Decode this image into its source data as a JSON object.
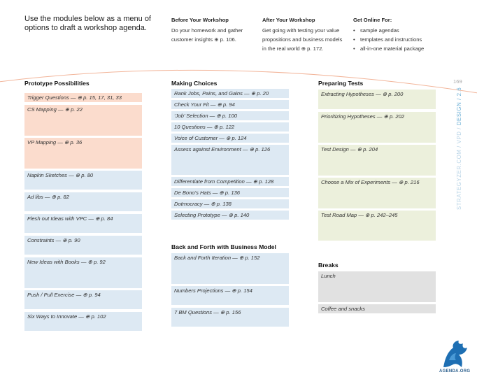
{
  "intro": "Use the modules below as a menu of options to draft a workshop agenda.",
  "before": {
    "title": "Before Your Workshop",
    "text": "Do your homework and gather customer insights ⊕ p. 106."
  },
  "after": {
    "title": "After Your Workshop",
    "text": "Get going with testing your value propositions and business models in the real world ⊕ p. 172."
  },
  "online": {
    "title": "Get Online For:",
    "items": [
      "sample agendas",
      "templates and instructions",
      "all-in-one material package"
    ]
  },
  "page_number": "169",
  "side_label_main": "STRATEGYZER.COM / VPD / ",
  "side_label_accent": "DESIGN / 2.6",
  "logo_text": "AGENDA.ORG",
  "prototype": {
    "title": "Prototype Possibilities",
    "items": [
      "Trigger Questions — ⊕ p. 15, 17, 31, 33",
      "CS Mapping — ⊕ p. 22",
      "VP Mapping — ⊕ p. 36",
      "Napkin Sketches — ⊕ p. 80",
      "Ad libs — ⊕ p. 82",
      "Flesh out Ideas with VPC — ⊕ p. 84",
      "Constraints — ⊕ p. 90",
      "New Ideas with Books — ⊕ p. 92",
      "Push / Pull Exercise — ⊕ p. 94",
      "Six Ways to Innovate — ⊕ p. 102"
    ]
  },
  "choices": {
    "title": "Making Choices",
    "items": [
      "Rank Jobs, Pains, and Gains — ⊕ p. 20",
      "Check Your Fit — ⊕ p. 94",
      "‘Job’ Selection — ⊕ p. 100",
      "10 Questions — ⊕ p. 122",
      "Voice of Customer — ⊕ p. 124",
      "Assess against Environment — ⊕ p. 126",
      "Differentiate from Competition — ⊕ p. 128",
      "De Bono’s Hats — ⊕ p. 136",
      "Dotmocracy — ⊕ p. 138",
      "Selecting Prototype — ⊕ p. 140"
    ]
  },
  "backforth": {
    "title": "Back and Forth with Business Model",
    "items": [
      "Back and Forth Iteration — ⊕ p. 152",
      "Numbers Projections — ⊕ p. 154",
      "7 BM Questions — ⊕ p. 156"
    ]
  },
  "tests": {
    "title": "Preparing Tests",
    "items": [
      "Extracting Hypotheses — ⊕ p. 200",
      "Prioritizing Hypotheses — ⊕ p. 202",
      "Test Design — ⊕ p. 204",
      "Choose a Mix of Experiments — ⊕ p. 216",
      "Test Road Map — ⊕ p. 242–245"
    ]
  },
  "breaks": {
    "title": "Breaks",
    "items": [
      "Lunch",
      "Coffee and snacks"
    ]
  }
}
